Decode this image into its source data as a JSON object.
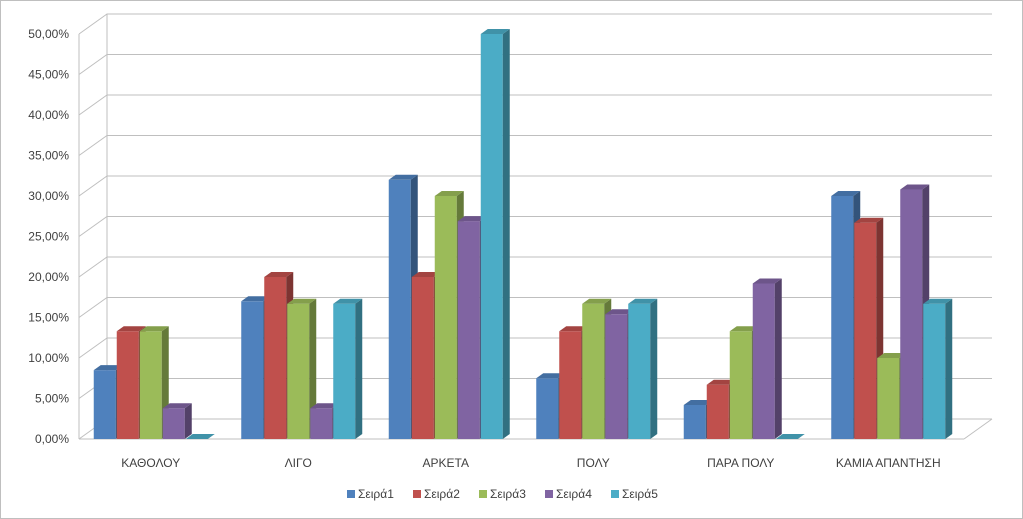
{
  "chart_data": {
    "type": "bar",
    "style": "3d-clustered-column",
    "categories": [
      "ΚΑΘΟΛΟΥ",
      "ΛΙΓΟ",
      "ΑΡΚΕΤΑ",
      "ΠΟΛΥ",
      "ΠΑΡΑ ΠΟΛΥ",
      "ΚΑΜΙΑ ΑΠΑΝΤΗΣΗ"
    ],
    "series": [
      {
        "name": "Σειρά1",
        "color": "#4F81BD",
        "values": [
          8.5,
          17.0,
          32.0,
          7.5,
          4.2,
          30.0
        ]
      },
      {
        "name": "Σειρά2",
        "color": "#C0504D",
        "values": [
          13.3,
          20.0,
          20.0,
          13.3,
          6.7,
          26.7
        ]
      },
      {
        "name": "Σειρά3",
        "color": "#9BBB59",
        "values": [
          13.3,
          16.7,
          30.0,
          16.7,
          13.3,
          10.0
        ]
      },
      {
        "name": "Σειρά4",
        "color": "#8064A2",
        "values": [
          3.8,
          3.8,
          26.9,
          15.4,
          19.2,
          30.8
        ]
      },
      {
        "name": "Σειρά5",
        "color": "#4BACC6",
        "values": [
          0.0,
          16.7,
          50.0,
          16.7,
          0.0,
          16.7
        ]
      }
    ],
    "y_ticks": [
      "0,00%",
      "5,00%",
      "10,00%",
      "15,00%",
      "20,00%",
      "25,00%",
      "30,00%",
      "35,00%",
      "40,00%",
      "45,00%",
      "50,00%"
    ],
    "ylim": [
      0,
      50
    ],
    "grid": true,
    "legend_position": "bottom"
  }
}
